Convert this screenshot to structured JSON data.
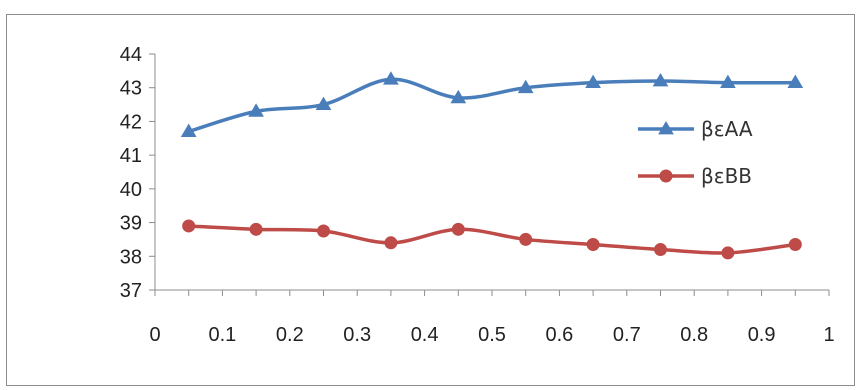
{
  "chart_data": {
    "type": "line",
    "title": "",
    "xlabel": "",
    "ylabel": "",
    "xlim": [
      0,
      1
    ],
    "ylim": [
      37,
      44
    ],
    "x_ticks": [
      "0",
      "0.1",
      "0.2",
      "0.3",
      "0.4",
      "0.5",
      "0.6",
      "0.7",
      "0.8",
      "0.9",
      "1"
    ],
    "y_ticks": [
      "37",
      "38",
      "39",
      "40",
      "41",
      "42",
      "43",
      "44"
    ],
    "grid": false,
    "legend_position": "right",
    "x": [
      0.05,
      0.15,
      0.25,
      0.35,
      0.45,
      0.55,
      0.65,
      0.75,
      0.85,
      0.95
    ],
    "series": [
      {
        "name": "βεAA",
        "color": "#4a7ebb",
        "marker": "triangle",
        "values": [
          41.7,
          42.3,
          42.5,
          43.25,
          42.7,
          43.0,
          43.15,
          43.2,
          43.15,
          43.15
        ]
      },
      {
        "name": "βεBB",
        "color": "#be4b48",
        "marker": "circle",
        "values": [
          38.9,
          38.8,
          38.75,
          38.4,
          38.8,
          38.5,
          38.35,
          38.2,
          38.1,
          38.35
        ]
      }
    ]
  }
}
